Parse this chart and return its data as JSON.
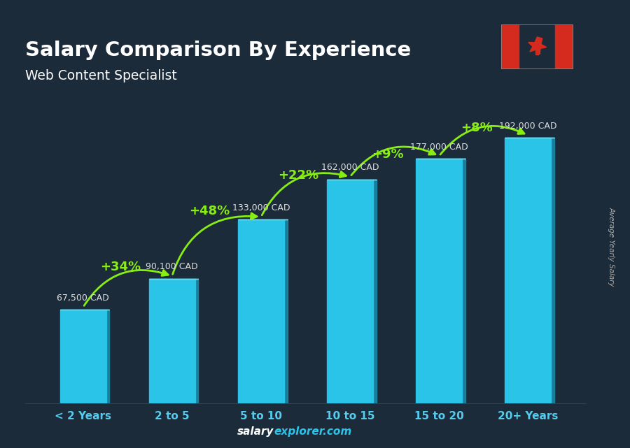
{
  "title": "Salary Comparison By Experience",
  "subtitle": "Web Content Specialist",
  "ylabel": "Average Yearly Salary",
  "categories": [
    "< 2 Years",
    "2 to 5",
    "5 to 10",
    "10 to 15",
    "15 to 20",
    "20+ Years"
  ],
  "values": [
    67500,
    90100,
    133000,
    162000,
    177000,
    192000
  ],
  "value_labels": [
    "67,500 CAD",
    "90,100 CAD",
    "133,000 CAD",
    "162,000 CAD",
    "177,000 CAD",
    "192,000 CAD"
  ],
  "pct_changes": [
    "+34%",
    "+48%",
    "+22%",
    "+9%",
    "+8%"
  ],
  "bar_color_face": "#29C4E8",
  "bar_color_edge": "#1AAACF",
  "bar_color_side": "#1888A8",
  "bar_color_top": "#6DDDEE",
  "background_color": "#1C2B3A",
  "title_color": "#FFFFFF",
  "subtitle_color": "#FFFFFF",
  "label_color": "#DDDDDD",
  "pct_color": "#88EE11",
  "xticklabel_color": "#55CCEE",
  "ylim": [
    0,
    240000
  ],
  "footer_salary_color": "#FFFFFF",
  "footer_explorer_color": "#29C4E8",
  "ylabel_color": "#AAAAAA",
  "arc_heights": [
    95000,
    135000,
    160000,
    175000,
    195000
  ]
}
